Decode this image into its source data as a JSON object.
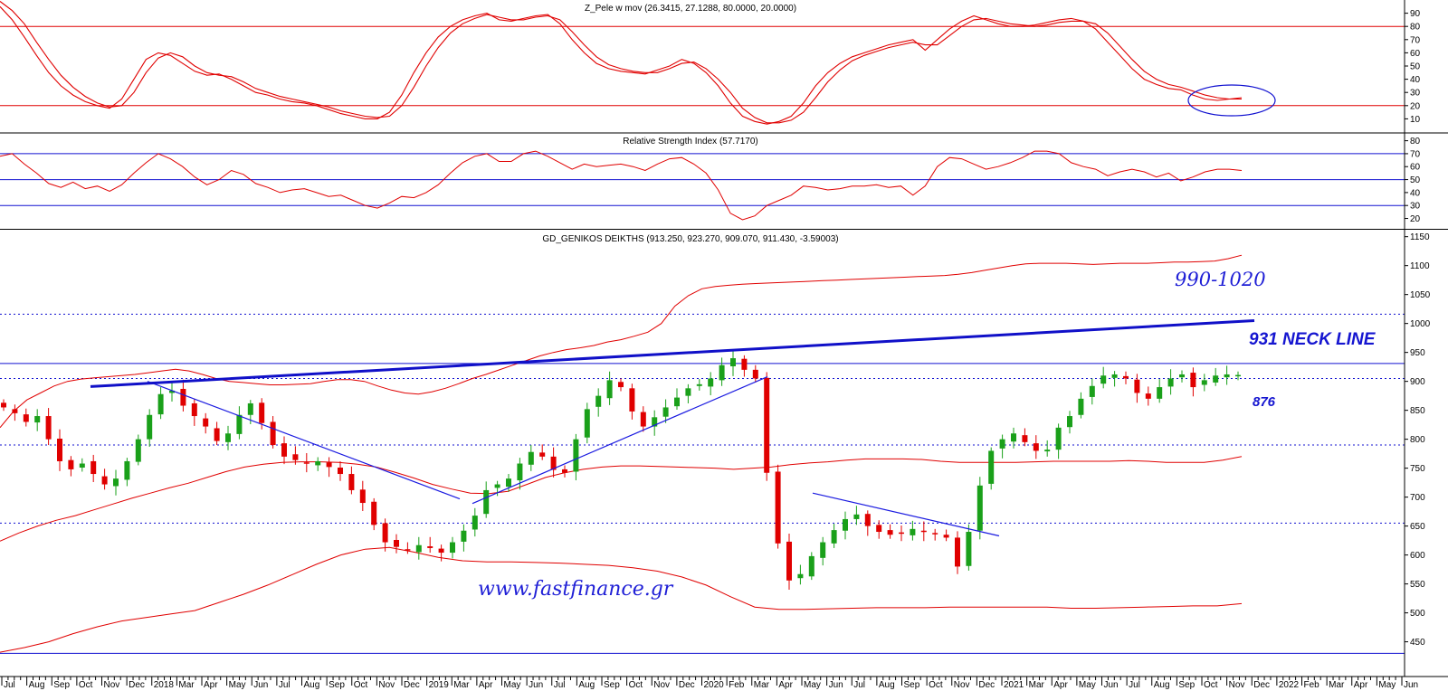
{
  "chart_data": [
    {
      "type": "line",
      "title": "Z_Pele w mov (26.3415, 27.1288, 80.0000, 20.0000)",
      "ylim": [
        0,
        100
      ],
      "yticks": [
        10,
        20,
        30,
        40,
        50,
        60,
        70,
        80,
        90
      ],
      "reference_lines": [
        80,
        20
      ],
      "series": [
        {
          "values": [
            95,
            85,
            72,
            58,
            45,
            35,
            28,
            23,
            20,
            18,
            25,
            40,
            55,
            60,
            58,
            52,
            46,
            43,
            44,
            40,
            35,
            30,
            28,
            25,
            23,
            22,
            20,
            17,
            14,
            12,
            10,
            10,
            15,
            28,
            45,
            60,
            72,
            80,
            85,
            88,
            90,
            85,
            84,
            86,
            88,
            89,
            82,
            70,
            60,
            52,
            48,
            46,
            45,
            44,
            47,
            50,
            55,
            52,
            45,
            35,
            22,
            12,
            8,
            6,
            8,
            12,
            22,
            35,
            45,
            52,
            57,
            60,
            63,
            66,
            68,
            70,
            62,
            70,
            78,
            84,
            88,
            85,
            82,
            80,
            80,
            81,
            83,
            85,
            86,
            84,
            78,
            68,
            58,
            48,
            40,
            36,
            33,
            32,
            28,
            25,
            24,
            25,
            26
          ]
        },
        {
          "values": [
            99,
            92,
            82,
            68,
            55,
            43,
            34,
            27,
            22,
            19,
            20,
            30,
            45,
            56,
            60,
            57,
            50,
            45,
            43,
            42,
            38,
            33,
            30,
            27,
            25,
            23,
            21,
            19,
            16,
            14,
            12,
            11,
            12,
            20,
            34,
            50,
            64,
            75,
            82,
            86,
            89,
            87,
            85,
            85,
            87,
            88,
            85,
            76,
            66,
            57,
            51,
            48,
            46,
            45,
            45,
            48,
            52,
            53,
            48,
            40,
            30,
            18,
            11,
            7,
            7,
            9,
            15,
            26,
            38,
            47,
            54,
            58,
            61,
            64,
            66,
            68,
            66,
            66,
            73,
            80,
            85,
            86,
            84,
            82,
            81,
            80,
            81,
            83,
            84,
            84,
            82,
            75,
            65,
            55,
            46,
            40,
            36,
            34,
            31,
            28,
            26,
            25,
            25
          ]
        }
      ]
    },
    {
      "type": "line",
      "title": "Relative Strength Index (57.7170)",
      "ylim": [
        12,
        86
      ],
      "yticks": [
        20,
        30,
        40,
        50,
        60,
        70,
        80
      ],
      "reference_lines": [
        70,
        50,
        30
      ],
      "series": [
        {
          "values": [
            68,
            70,
            62,
            55,
            47,
            44,
            48,
            43,
            45,
            41,
            46,
            55,
            63,
            70,
            66,
            60,
            52,
            46,
            50,
            57,
            54,
            47,
            44,
            40,
            42,
            43,
            40,
            37,
            38,
            34,
            30,
            28,
            32,
            37,
            36,
            40,
            46,
            55,
            63,
            68,
            70,
            64,
            64,
            70,
            72,
            68,
            63,
            58,
            62,
            60,
            61,
            62,
            60,
            57,
            62,
            66,
            67,
            62,
            55,
            42,
            24,
            19,
            22,
            30,
            34,
            38,
            45,
            44,
            42,
            43,
            45,
            45,
            46,
            44,
            45,
            38,
            45,
            60,
            67,
            66,
            62,
            58,
            60,
            63,
            67,
            72,
            72,
            70,
            63,
            60,
            58,
            53,
            56,
            58,
            56,
            52,
            55,
            49,
            52,
            56,
            58,
            58,
            57
          ]
        }
      ]
    },
    {
      "type": "candlestick",
      "title": "GD_GENIKOS DEIKTHS (913.250, 923.270, 909.070, 911.430, -3.59003)",
      "ylim": [
        385,
        1160
      ],
      "yticks": [
        450,
        500,
        550,
        600,
        650,
        700,
        750,
        800,
        850,
        900,
        950,
        1000,
        1050,
        1100,
        1150
      ],
      "close": [
        855,
        845,
        830,
        840,
        800,
        762,
        748,
        758,
        740,
        722,
        732,
        762,
        800,
        842,
        878,
        884,
        858,
        840,
        822,
        797,
        810,
        842,
        862,
        828,
        790,
        770,
        764,
        758,
        762,
        752,
        740,
        712,
        690,
        652,
        622,
        614,
        608,
        617,
        612,
        604,
        622,
        642,
        668,
        712,
        722,
        732,
        758,
        778,
        770,
        747,
        742,
        800,
        852,
        875,
        902,
        890,
        848,
        822,
        838,
        855,
        872,
        888,
        895,
        905,
        928,
        940,
        920,
        905,
        742,
        620,
        556,
        567,
        598,
        622,
        643,
        662,
        670,
        650,
        640,
        635,
        638,
        645,
        640,
        636,
        630,
        580,
        640,
        720,
        780,
        800,
        810,
        795,
        780,
        782,
        820,
        840,
        870,
        892,
        910,
        912,
        905,
        880,
        870,
        890,
        905,
        912,
        890,
        902,
        910,
        912,
        911
      ],
      "reference_lines_dotted": [
        1016,
        905,
        790,
        655
      ],
      "reference_lines_solid": [
        931,
        430
      ],
      "bollinger_upper": [
        820,
        848,
        868,
        880,
        892,
        900,
        904,
        906,
        908,
        910,
        912,
        915,
        918,
        921,
        918,
        912,
        905,
        900,
        898,
        896,
        894,
        894,
        895,
        896,
        900,
        903,
        903,
        900,
        892,
        885,
        880,
        878,
        882,
        888,
        896,
        905,
        912,
        920,
        928,
        936,
        944,
        950,
        955,
        958,
        962,
        968,
        972,
        978,
        985,
        1000,
        1030,
        1048,
        1060,
        1064,
        1066,
        1068,
        1069,
        1070,
        1071,
        1072,
        1073,
        1074,
        1075,
        1076,
        1077,
        1078,
        1079,
        1080,
        1081,
        1082,
        1083,
        1085,
        1088,
        1092,
        1096,
        1100,
        1103,
        1104,
        1104,
        1104,
        1103,
        1102,
        1103,
        1104,
        1104,
        1104,
        1105,
        1106,
        1106,
        1107,
        1108,
        1112,
        1118
      ],
      "bollinger_mid": [
        624,
        638,
        650,
        660,
        668,
        678,
        688,
        698,
        707,
        716,
        724,
        734,
        744,
        752,
        757,
        760,
        761,
        761,
        760,
        757,
        752,
        743,
        733,
        722,
        714,
        707,
        706,
        710,
        722,
        734,
        742,
        748,
        752,
        754,
        754,
        753,
        752,
        751,
        750,
        748,
        750,
        752,
        756,
        759,
        761,
        764,
        766,
        766,
        766,
        765,
        762,
        760,
        760,
        760,
        760,
        761,
        762,
        762,
        762,
        762,
        763,
        762,
        760,
        760,
        760,
        764,
        770
      ],
      "bollinger_lower": [
        432,
        440,
        450,
        464,
        476,
        486,
        492,
        498,
        504,
        518,
        532,
        548,
        566,
        584,
        600,
        610,
        613,
        605,
        596,
        590,
        588,
        588,
        587,
        586,
        584,
        582,
        578,
        572,
        562,
        548,
        528,
        510,
        506,
        506,
        507,
        508,
        509,
        509,
        509,
        510,
        510,
        510,
        510,
        510,
        508,
        508,
        509,
        510,
        511,
        512,
        512,
        516
      ]
    }
  ],
  "axis_labels": [
    "Jul",
    "Aug",
    "Sep",
    "Oct",
    "Nov",
    "Dec",
    "2018",
    "Mar",
    "Apr",
    "May",
    "Jun",
    "Jul",
    "Aug",
    "Sep",
    "Oct",
    "Nov",
    "Dec",
    "2019",
    "Mar",
    "Apr",
    "May",
    "Jun",
    "Jul",
    "Aug",
    "Sep",
    "Oct",
    "Nov",
    "Dec",
    "2020",
    "Feb",
    "Mar",
    "Apr",
    "May",
    "Jun",
    "Jul",
    "Aug",
    "Sep",
    "Oct",
    "Nov",
    "Dec",
    "2021",
    "Mar",
    "Apr",
    "May",
    "Jun",
    "Jul",
    "Aug",
    "Sep",
    "Oct",
    "Nov",
    "Dec",
    "2022",
    "Feb",
    "Mar",
    "Apr",
    "May",
    "Jun"
  ],
  "annotations": {
    "target_range": "990-1020",
    "neck_line": "931 NECK LINE",
    "support_level": "876",
    "watermark": "www.fastfinance.gr"
  },
  "colors": {
    "oscillator": "#e00000",
    "rsi": "#e00000",
    "reference": "#1010d0",
    "bollinger": "#e00000",
    "candle_up": "#1aa01a",
    "candle_down": "#e00000",
    "trendline": "#1a1ae0",
    "neck_line": "#1010c8",
    "annotation": "#1f1fd6"
  }
}
